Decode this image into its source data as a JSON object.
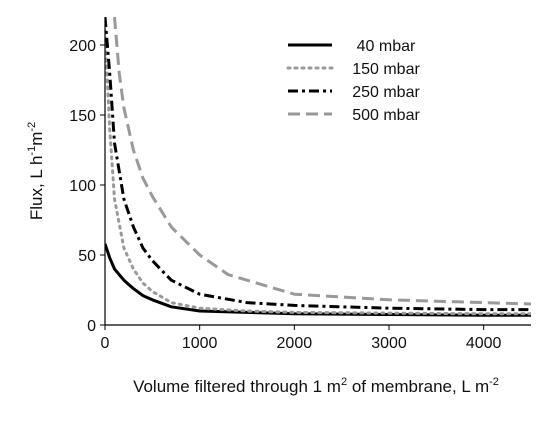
{
  "chart_data": {
    "type": "line",
    "xlabel": "Volume filtered through 1 m",
    "xlabel_sup": "2",
    "xlabel_tail": " of membrane, L m",
    "xlabel_tail_sup": "-2",
    "ylabel": "Flux, L h",
    "ylabel_sup1": "-1",
    "ylabel_mid": "m",
    "ylabel_sup2": "-2",
    "xlim": [
      0,
      4500
    ],
    "ylim": [
      0,
      220
    ],
    "x_ticks": [
      0,
      1000,
      2000,
      3000,
      4000
    ],
    "y_ticks": [
      0,
      50,
      100,
      150,
      200
    ],
    "x_tick_labels": [
      "0",
      "1000",
      "2000",
      "3000",
      "4000"
    ],
    "y_tick_labels": [
      "0",
      "50",
      "100",
      "150",
      "200"
    ],
    "grid": false,
    "legend_position": "top-right",
    "series": [
      {
        "name": "40 mbar",
        "color": "#000000",
        "dash": "solid",
        "x": [
          0,
          50,
          100,
          200,
          300,
          400,
          500,
          700,
          1000,
          1500,
          2000,
          3000,
          4000,
          4500
        ],
        "y": [
          58,
          48,
          40,
          32,
          26,
          21,
          18,
          13,
          10,
          9,
          8,
          7.5,
          7,
          7
        ]
      },
      {
        "name": "150 mbar",
        "color": "#999999",
        "dash": "dot",
        "x": [
          0,
          50,
          100,
          200,
          300,
          400,
          500,
          700,
          1000,
          1500,
          2000,
          3000,
          4000,
          4500
        ],
        "y": [
          210,
          140,
          90,
          55,
          40,
          30,
          24,
          16,
          12,
          10,
          9,
          8.5,
          8,
          8
        ]
      },
      {
        "name": "250 mbar",
        "color": "#000000",
        "dash": "dashdot",
        "x": [
          0,
          50,
          100,
          200,
          300,
          400,
          500,
          700,
          1000,
          1500,
          2000,
          3000,
          4000,
          4500
        ],
        "y": [
          220,
          180,
          130,
          90,
          70,
          55,
          46,
          32,
          22,
          16,
          14,
          12,
          11,
          11
        ]
      },
      {
        "name": "500 mbar",
        "color": "#999999",
        "dash": "dash",
        "x": [
          100,
          150,
          200,
          300,
          400,
          500,
          700,
          1000,
          1300,
          1700,
          2000,
          2500,
          3000,
          3500,
          4000,
          4500
        ],
        "y": [
          220,
          180,
          155,
          125,
          105,
          92,
          70,
          50,
          36,
          28,
          22,
          20,
          18,
          17,
          16,
          15
        ]
      }
    ]
  }
}
